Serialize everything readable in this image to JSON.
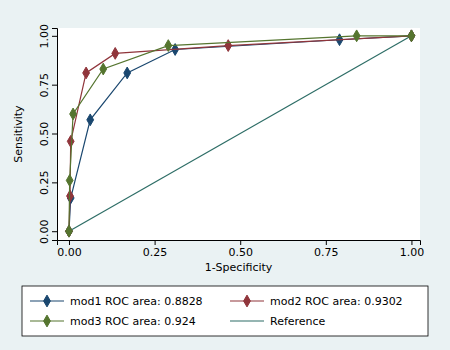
{
  "chart_data": {
    "type": "line",
    "x_label": "1-Specificity",
    "y_label": "Sensitivity",
    "xlim": [
      -0.035,
      1.025
    ],
    "ylim": [
      -0.045,
      1.04
    ],
    "xticks": [
      {
        "value": 0,
        "label": "0.00"
      },
      {
        "value": 0.25,
        "label": "0.25"
      },
      {
        "value": 0.5,
        "label": "0.50"
      },
      {
        "value": 0.75,
        "label": "0.75"
      },
      {
        "value": 1,
        "label": "1.00"
      }
    ],
    "yticks": [
      {
        "value": 0,
        "label": "0.00"
      },
      {
        "value": 0.25,
        "label": "0.25"
      },
      {
        "value": 0.5,
        "label": "0.50"
      },
      {
        "value": 0.75,
        "label": "0.75"
      },
      {
        "value": 1,
        "label": "1.00"
      }
    ],
    "grid": false,
    "legend": "bottom",
    "series": [
      {
        "name": "mod1 ROC area: 0.8828",
        "color": "#1a476f",
        "marker": "diamond",
        "line_style": "solid",
        "x": [
          0,
          0.005,
          0.062,
          0.17,
          0.31,
          0.79,
          1
        ],
        "values": [
          0,
          0.17,
          0.57,
          0.81,
          0.93,
          0.98,
          1
        ]
      },
      {
        "name": "mod2 ROC area: 0.9302",
        "color": "#90353b",
        "marker": "diamond",
        "line_style": "solid",
        "x": [
          0,
          0.003,
          0.005,
          0.05,
          0.135,
          0.465,
          1
        ],
        "values": [
          0,
          0.18,
          0.46,
          0.81,
          0.91,
          0.95,
          1
        ]
      },
      {
        "name": "mod3 ROC area: 0.924",
        "color": "#55752f",
        "marker": "diamond",
        "line_style": "solid",
        "x": [
          0,
          0.002,
          0.012,
          0.1,
          0.29,
          0.84,
          1
        ],
        "values": [
          0,
          0.26,
          0.6,
          0.83,
          0.95,
          1.0,
          1
        ]
      },
      {
        "name": "Reference",
        "color": "#2d6d66",
        "marker": "none",
        "line_style": "solid",
        "x": [
          0,
          1
        ],
        "values": [
          0,
          1
        ]
      }
    ]
  }
}
